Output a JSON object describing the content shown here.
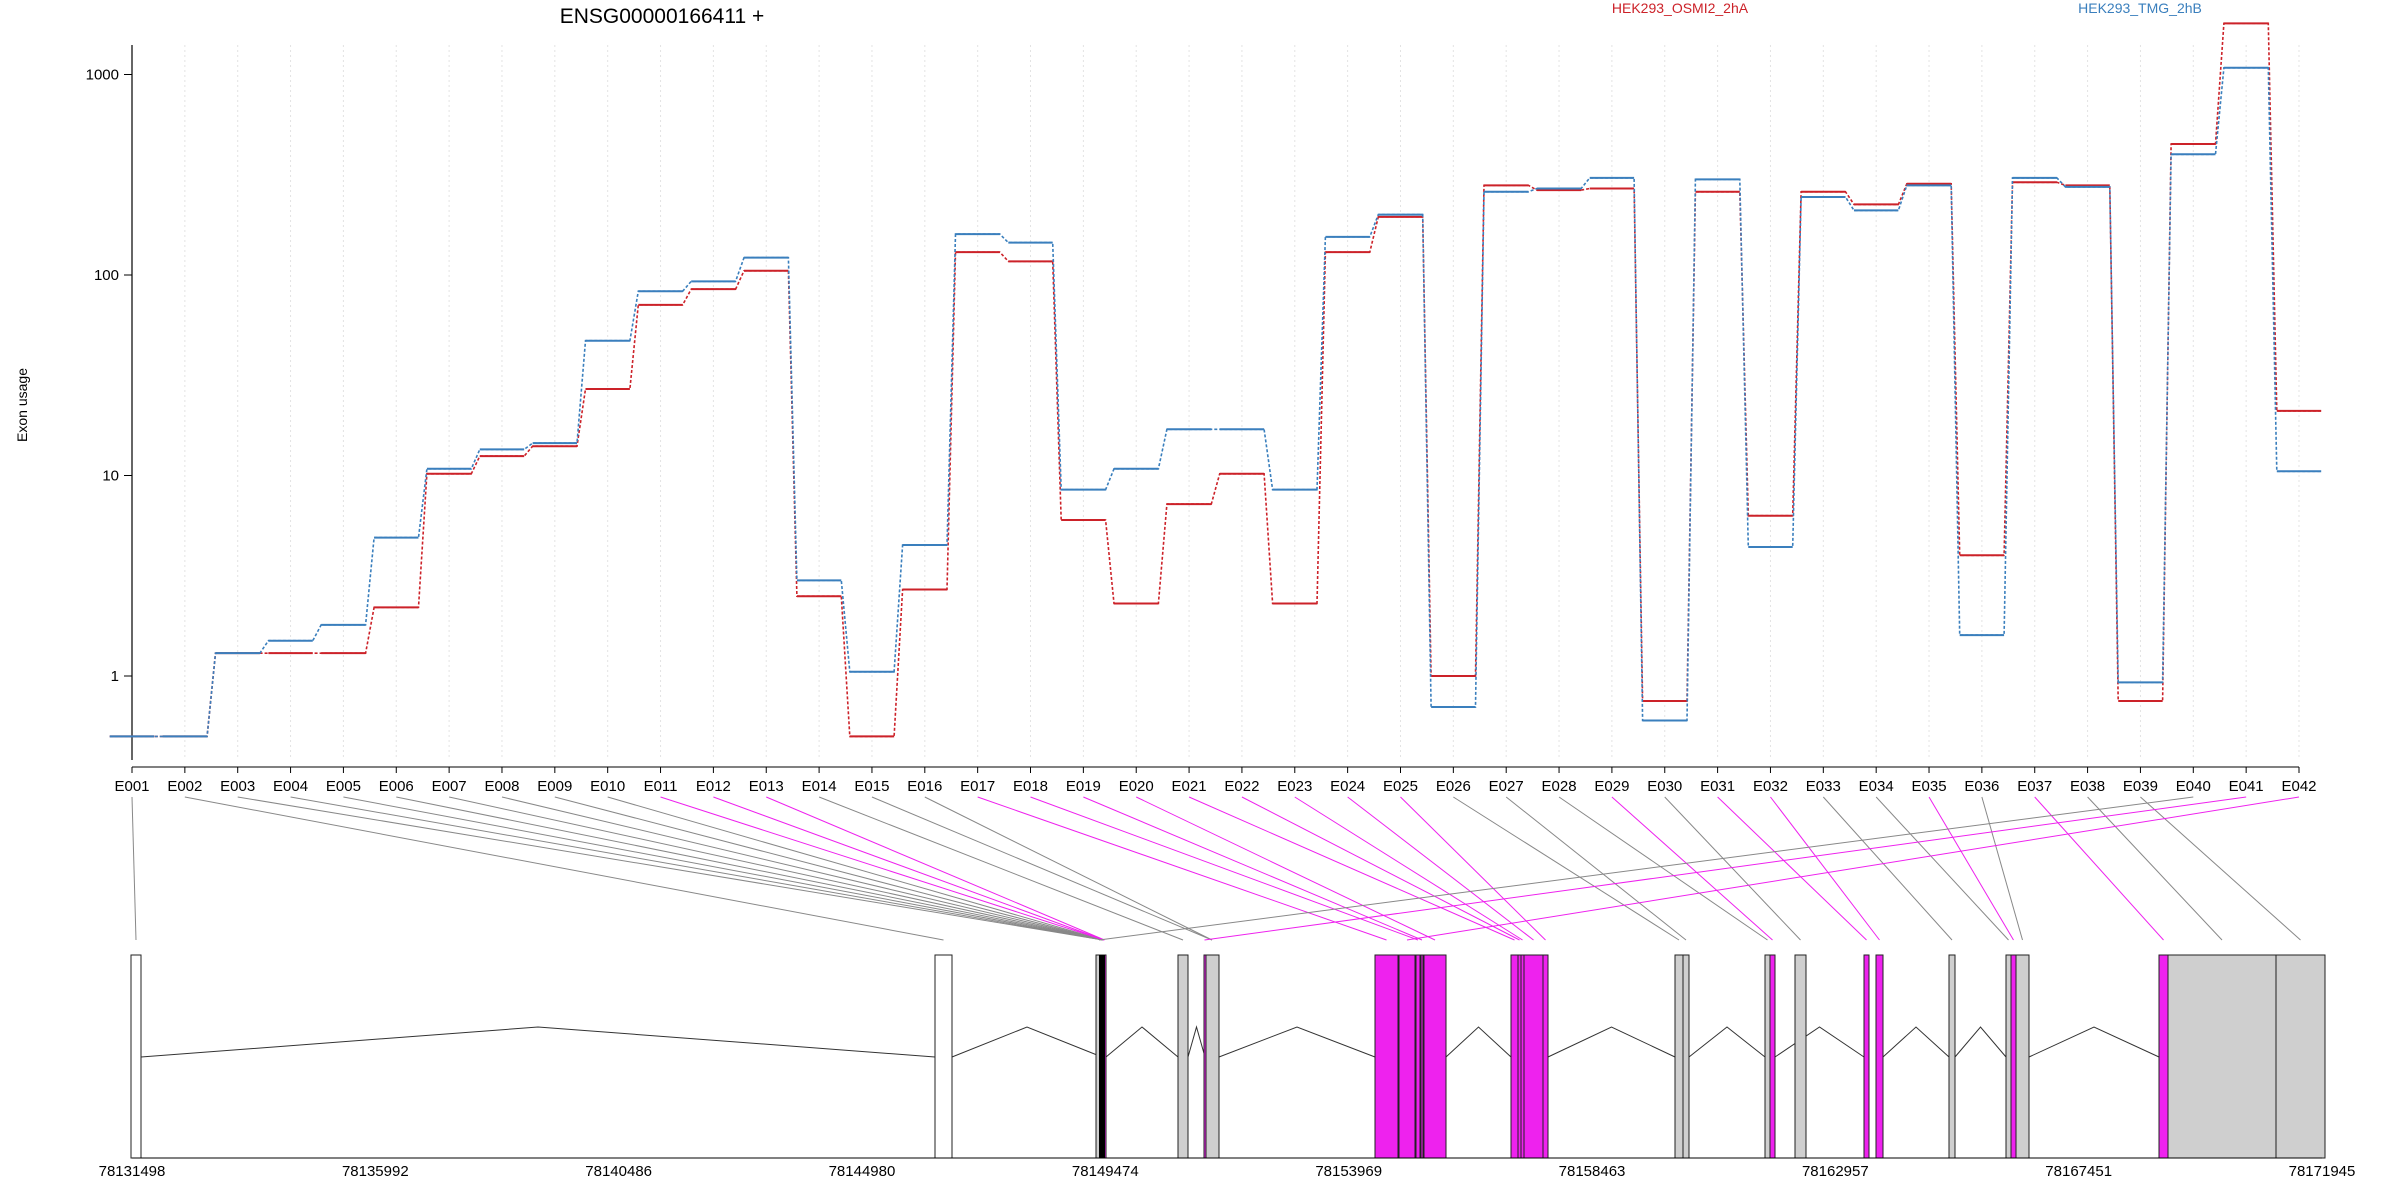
{
  "chart_data": {
    "type": "line",
    "title": "ENSG00000166411 +",
    "ylabel": "Exon usage",
    "xlabel": "",
    "y_scale": "log",
    "y_ticks": [
      1,
      10,
      100,
      1000
    ],
    "grid": "vertical dotted lines at exon positions",
    "legend_placement": "top",
    "categories": [
      "E001",
      "E002",
      "E003",
      "E004",
      "E005",
      "E006",
      "E007",
      "E008",
      "E009",
      "E010",
      "E011",
      "E012",
      "E013",
      "E014",
      "E015",
      "E016",
      "E017",
      "E018",
      "E019",
      "E020",
      "E021",
      "E022",
      "E023",
      "E024",
      "E025",
      "E026",
      "E027",
      "E028",
      "E029",
      "E030",
      "E031",
      "E032",
      "E033",
      "E034",
      "E035",
      "E036",
      "E037",
      "E038",
      "E039",
      "E040",
      "E041",
      "E042"
    ],
    "series": [
      {
        "name": "HEK293_OSMI2_2hA",
        "color": "#cc2229",
        "values": [
          0.5,
          0.5,
          1.3,
          1.3,
          1.3,
          2.2,
          10.2,
          12.5,
          14,
          27,
          71,
          85,
          105,
          2.5,
          0.5,
          2.7,
          130,
          117,
          6,
          2.3,
          7.2,
          10.2,
          2.3,
          130,
          195,
          1.0,
          280,
          265,
          270,
          0.75,
          260,
          6.3,
          260,
          225,
          285,
          4.0,
          290,
          280,
          0.75,
          450,
          1800,
          21
        ]
      },
      {
        "name": "HEK293_TMG_2hB",
        "color": "#3a7fbd",
        "values": [
          0.5,
          0.5,
          1.3,
          1.5,
          1.8,
          4.9,
          10.8,
          13.5,
          14.5,
          47,
          83,
          93,
          122,
          3.0,
          1.05,
          4.5,
          160,
          145,
          8.5,
          10.8,
          17,
          17,
          8.5,
          155,
          200,
          0.7,
          260,
          270,
          305,
          0.6,
          300,
          4.4,
          245,
          210,
          280,
          1.6,
          305,
          275,
          0.93,
          400,
          1080,
          10.5
        ]
      }
    ],
    "genomic_axis": {
      "ticks": [
        "78131498",
        "78135992",
        "78140486",
        "78144980",
        "78149474",
        "78153969",
        "78158463",
        "78162957",
        "78167451",
        "78171945"
      ],
      "range": [
        78131498,
        78171945
      ]
    },
    "highlight_color": "#ee22ee",
    "exon_highlight": [
      false,
      false,
      false,
      false,
      false,
      false,
      false,
      false,
      false,
      false,
      true,
      true,
      true,
      false,
      false,
      false,
      true,
      true,
      true,
      true,
      true,
      true,
      true,
      true,
      true,
      false,
      false,
      false,
      true,
      false,
      true,
      true,
      false,
      false,
      true,
      false,
      true,
      false,
      false,
      false,
      true,
      true
    ]
  }
}
